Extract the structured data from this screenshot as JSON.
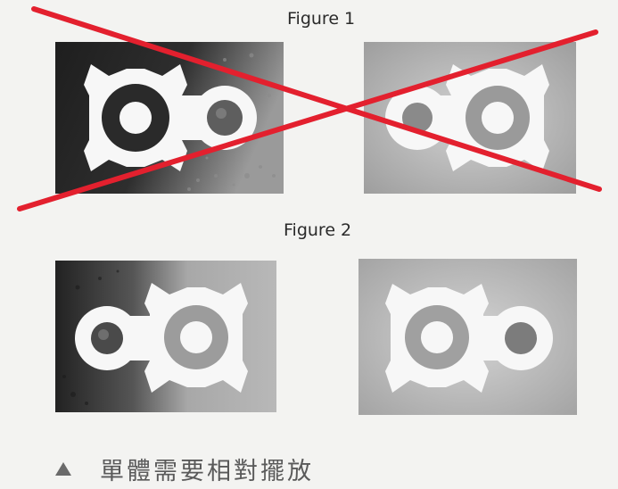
{
  "figures": [
    {
      "caption": "Figure 1",
      "crossed_out": true
    },
    {
      "caption": "Figure 2",
      "crossed_out": false
    }
  ],
  "footer": {
    "bullet_icon": "triangle-up-icon",
    "text": "單體需要相對擺放"
  },
  "colors": {
    "cross": "#e3202e",
    "dark_background": "#2b2b2b",
    "light_background": "#c9c9c9",
    "gasket": "#f7f7f7"
  }
}
